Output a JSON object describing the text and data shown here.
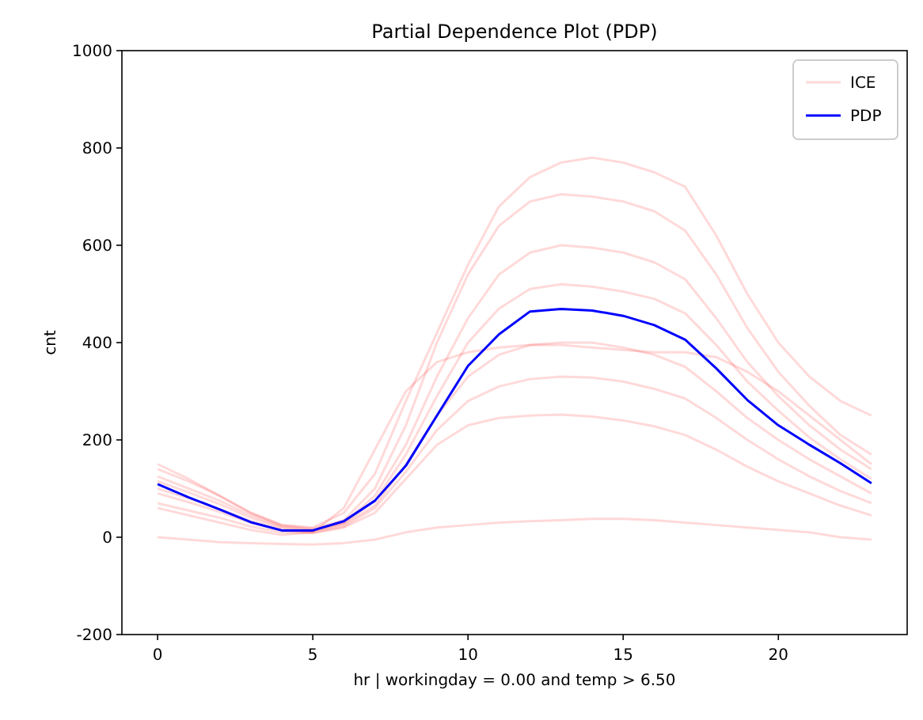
{
  "chart_data": {
    "type": "line",
    "title": "Partial Dependence Plot (PDP)",
    "xlabel": "hr | workingday = 0.00 and temp > 6.50",
    "ylabel": "cnt",
    "x": [
      0,
      1,
      2,
      3,
      4,
      5,
      6,
      7,
      8,
      9,
      10,
      11,
      12,
      13,
      14,
      15,
      16,
      17,
      18,
      19,
      20,
      21,
      22,
      23
    ],
    "xlim": [
      -1.15,
      24.15
    ],
    "xticks": [
      0,
      5,
      10,
      15,
      20
    ],
    "ylim": [
      -200,
      1000
    ],
    "yticks": [
      -200,
      0,
      200,
      400,
      600,
      800,
      1000
    ],
    "legend": "top right",
    "grid": false,
    "line_style": "solid",
    "series": [
      {
        "name": "ICE",
        "color": "#ff0000",
        "values": [
          150,
          120,
          85,
          50,
          25,
          20,
          50,
          130,
          280,
          420,
          560,
          680,
          740,
          770,
          780,
          770,
          750,
          720,
          620,
          500,
          400,
          330,
          280,
          250
        ]
      },
      {
        "color": "#ff0000",
        "values": [
          140,
          115,
          85,
          50,
          25,
          18,
          35,
          100,
          230,
          400,
          540,
          640,
          690,
          705,
          700,
          690,
          670,
          630,
          540,
          430,
          340,
          270,
          210,
          170
        ]
      },
      {
        "color": "#ff0000",
        "values": [
          125,
          100,
          75,
          45,
          22,
          15,
          30,
          85,
          190,
          330,
          450,
          540,
          585,
          600,
          595,
          585,
          565,
          530,
          450,
          360,
          290,
          230,
          180,
          140
        ]
      },
      {
        "color": "#ff0000",
        "values": [
          115,
          92,
          68,
          40,
          20,
          14,
          28,
          75,
          170,
          290,
          400,
          470,
          510,
          520,
          515,
          505,
          490,
          460,
          395,
          320,
          260,
          205,
          160,
          120
        ]
      },
      {
        "color": "#ff0000",
        "values": [
          100,
          80,
          58,
          33,
          16,
          12,
          26,
          65,
          150,
          250,
          330,
          375,
          395,
          400,
          400,
          390,
          375,
          350,
          300,
          245,
          200,
          160,
          125,
          90
        ]
      },
      {
        "color": "#ff0000",
        "values": [
          90,
          72,
          52,
          30,
          14,
          10,
          22,
          60,
          135,
          220,
          280,
          310,
          325,
          330,
          328,
          320,
          305,
          285,
          245,
          200,
          160,
          125,
          95,
          70
        ]
      },
      {
        "color": "#ff0000",
        "values": [
          70,
          55,
          40,
          22,
          10,
          8,
          20,
          50,
          120,
          190,
          230,
          245,
          250,
          252,
          248,
          240,
          228,
          210,
          180,
          145,
          115,
          90,
          65,
          45
        ]
      },
      {
        "color": "#ff0000",
        "values": [
          60,
          45,
          30,
          15,
          5,
          10,
          60,
          180,
          300,
          360,
          380,
          390,
          395,
          395,
          390,
          385,
          380,
          380,
          370,
          340,
          300,
          250,
          200,
          150
        ]
      },
      {
        "color": "#ff0000",
        "values": [
          0,
          -5,
          -10,
          -12,
          -14,
          -15,
          -12,
          -5,
          10,
          20,
          25,
          30,
          33,
          35,
          38,
          38,
          35,
          30,
          25,
          20,
          15,
          10,
          0,
          -5
        ]
      },
      {
        "name": "PDP",
        "color": "#0000ff",
        "values": [
          109,
          82,
          57,
          31,
          14,
          14,
          33,
          75,
          147,
          250,
          352,
          417,
          464,
          469,
          466,
          455,
          436,
          406,
          347,
          282,
          230,
          190,
          152,
          111
        ]
      }
    ]
  }
}
